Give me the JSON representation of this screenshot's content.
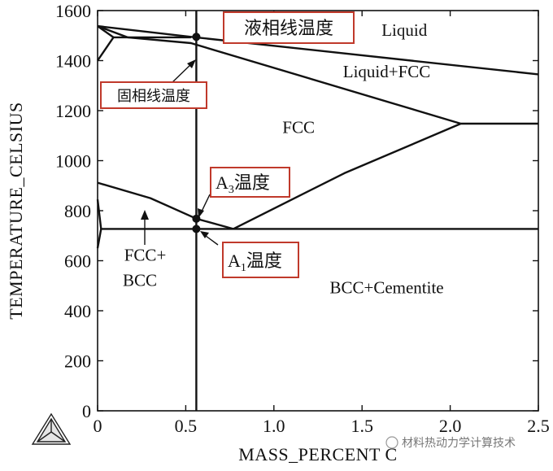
{
  "chart_data": {
    "type": "line",
    "title": "",
    "xlabel": "MASS_PERCENT C",
    "ylabel": "TEMPERATURE_CELSIUS",
    "xlim": [
      0,
      2.5
    ],
    "ylim": [
      0,
      1600
    ],
    "x_ticks": [
      0,
      0.5,
      1.0,
      1.5,
      2.0,
      2.5
    ],
    "x_tick_labels": [
      "0",
      "0.5",
      "1.0",
      "1.5",
      "2.0",
      "2.5"
    ],
    "y_ticks": [
      0,
      200,
      400,
      600,
      800,
      1000,
      1200,
      1400,
      1600
    ],
    "y_tick_labels": [
      "0",
      "200",
      "400",
      "600",
      "800",
      "1000",
      "1200",
      "1400",
      "1600"
    ],
    "grid": false,
    "series": [
      {
        "points": [
          [
            0,
            1538
          ],
          [
            0.53,
            1495
          ],
          [
            2.5,
            1345
          ]
        ]
      },
      {
        "points": [
          [
            0,
            1538
          ],
          [
            0.17,
            1493
          ],
          [
            0.53,
            1470
          ],
          [
            2.06,
            1148
          ]
        ]
      },
      {
        "points": [
          [
            0.09,
            1493
          ],
          [
            0.53,
            1493
          ]
        ]
      },
      {
        "points": [
          [
            0,
            1538
          ],
          [
            0.09,
            1493
          ],
          [
            0,
            1400
          ]
        ]
      },
      {
        "points": [
          [
            2.06,
            1148
          ],
          [
            2.5,
            1148
          ]
        ]
      },
      {
        "points": [
          [
            0,
            912
          ],
          [
            0.3,
            850
          ],
          [
            0.56,
            768
          ],
          [
            0.77,
            727
          ]
        ]
      },
      {
        "points": [
          [
            0.77,
            727
          ],
          [
            1.4,
            950
          ],
          [
            2.06,
            1148
          ]
        ]
      },
      {
        "points": [
          [
            0.02,
            727
          ],
          [
            2.5,
            727
          ]
        ]
      },
      {
        "points": [
          [
            0,
            845
          ],
          [
            0.02,
            727
          ],
          [
            0,
            650
          ]
        ]
      },
      {
        "points": [
          [
            0.56,
            0
          ],
          [
            0.56,
            1600
          ]
        ]
      }
    ],
    "markers": [
      {
        "x": 0.56,
        "y": 1495
      },
      {
        "x": 0.56,
        "y": 768
      },
      {
        "x": 0.56,
        "y": 727
      }
    ],
    "regions": [
      {
        "label": "Liquid",
        "x": 1.74,
        "y": 1500
      },
      {
        "label": "Liquid+FCC",
        "x": 1.64,
        "y": 1333
      },
      {
        "label": "FCC",
        "x": 1.14,
        "y": 1110
      },
      {
        "label": "FCC+",
        "x": 0.27,
        "y": 600
      },
      {
        "label": "BCC",
        "x": 0.24,
        "y": 500
      },
      {
        "label": "BCC+Cementite",
        "x": 1.64,
        "y": 470
      }
    ],
    "annotations": [
      {
        "text": "液相线温度",
        "sub": ""
      },
      {
        "text": "固相线温度",
        "sub": ""
      },
      {
        "text": "A",
        "sub": "3",
        "rest": "温度"
      },
      {
        "text": "A",
        "sub": "1",
        "rest": "温度"
      }
    ]
  },
  "watermark": "材料热动力学计算技术",
  "colors": {
    "line": "#111111",
    "callout_border": "#c0392b",
    "background": "#ffffff",
    "watermark": "#777777"
  }
}
